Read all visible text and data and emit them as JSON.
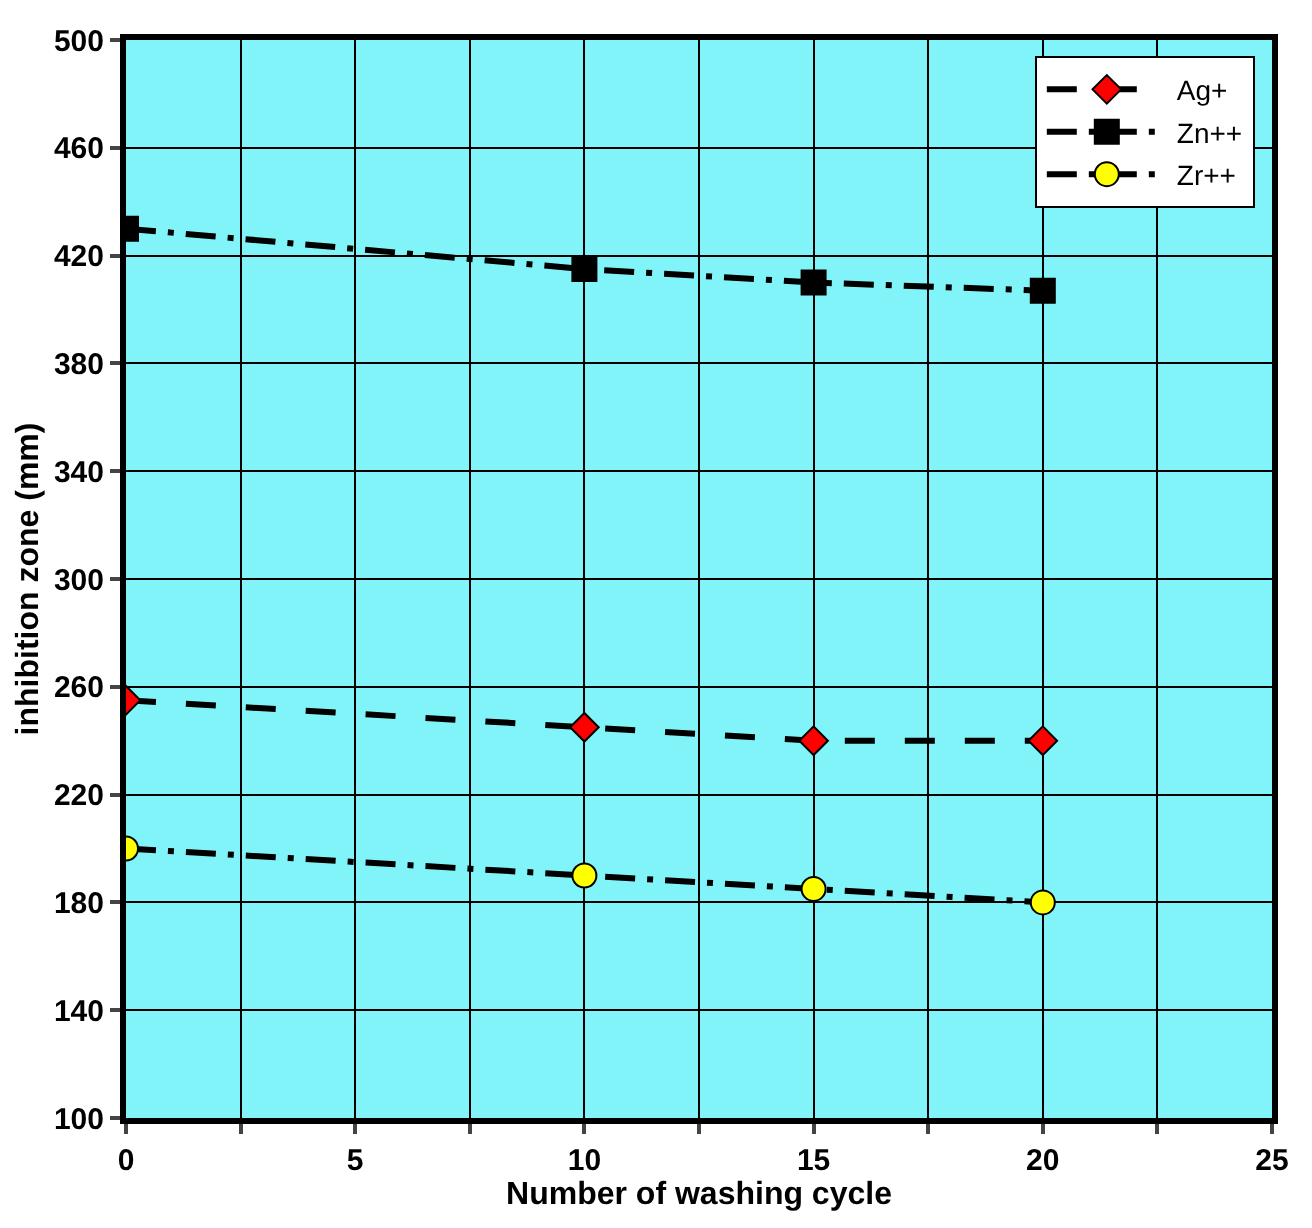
{
  "chart_data": {
    "type": "line",
    "xlabel": "Number of washing cycle",
    "ylabel": "inhibition zone (mm)",
    "x": [
      0,
      10,
      15,
      20
    ],
    "series": [
      {
        "name": "Ag+",
        "color": "#ff0000",
        "marker": "diamond",
        "line_style": "dashed",
        "values": [
          255,
          245,
          240,
          240
        ]
      },
      {
        "name": "Zn++",
        "color": "#000000",
        "marker": "square",
        "line_style": "dashdot",
        "values": [
          430,
          415,
          410,
          407
        ]
      },
      {
        "name": "Zr++",
        "color": "#ffff00",
        "marker": "circle",
        "line_style": "dashdot",
        "values": [
          200,
          190,
          185,
          180
        ]
      }
    ],
    "xlim": [
      0,
      25
    ],
    "xticks": [
      0,
      {
        "value": 2.5,
        "label": null
      },
      5,
      {
        "value": 7.5,
        "label": null
      },
      10,
      {
        "value": 12.5,
        "label": null
      },
      15,
      {
        "value": 17.5,
        "label": null
      },
      20,
      {
        "value": 22.5,
        "label": null
      },
      25
    ],
    "ylim": [
      100,
      500
    ],
    "yticks": [
      100,
      140,
      180,
      220,
      260,
      300,
      340,
      380,
      420,
      460,
      500
    ],
    "grid": true,
    "legend": "top right"
  }
}
